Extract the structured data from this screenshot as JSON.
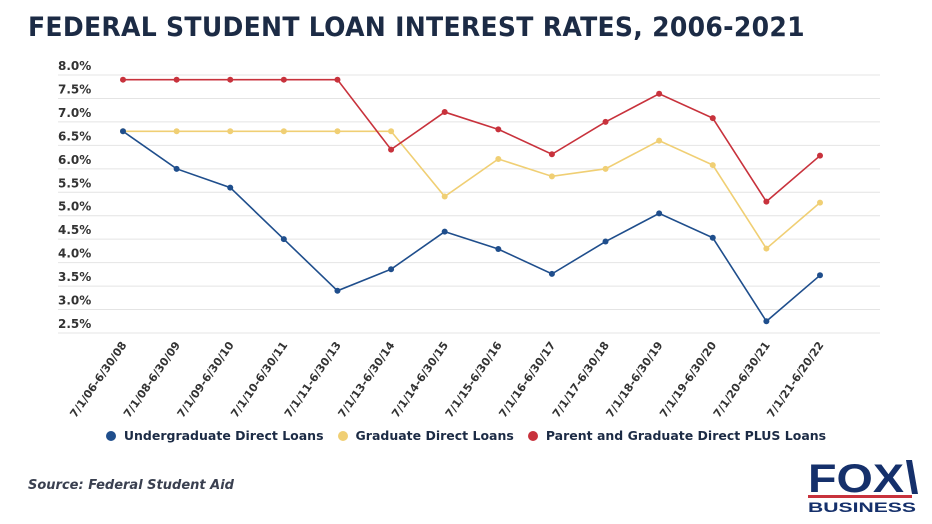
{
  "chart_data": {
    "type": "line",
    "title": "FEDERAL STUDENT LOAN INTEREST RATES, 2006-2021",
    "categories": [
      "7/1/06-6/30/08",
      "7/1/08-6/30/09",
      "7/1/09-6/30/10",
      "7/1/10-6/30/11",
      "7/1/11-6/30/13",
      "7/1/13-6/30/14",
      "7/1/14-6/30/15",
      "7/1/15-6/30/16",
      "7/1/16-6/30/17",
      "7/1/17-6/30/18",
      "7/1/18-6/30/19",
      "7/1/19-6/30/20",
      "7/1/20-6/30/21",
      "7/1/21-6/20/22"
    ],
    "yticks": [
      "8.0%",
      "7.5%",
      "7.0%",
      "6.5%",
      "6.0%",
      "5.5%",
      "5.0%",
      "4.5%",
      "4.0%",
      "3.5%",
      "3.0%",
      "2.5%"
    ],
    "ylim": [
      2.5,
      8.0
    ],
    "grid": true,
    "legend_position": "bottom",
    "series": [
      {
        "name": "Undergraduate Direct Loans",
        "color": "#1f4e8c",
        "values": [
          6.8,
          6.0,
          5.6,
          4.5,
          3.4,
          3.86,
          4.66,
          4.29,
          3.76,
          4.45,
          5.05,
          4.53,
          2.75,
          3.73
        ]
      },
      {
        "name": "Graduate Direct Loans",
        "color": "#f0cf74",
        "values": [
          6.8,
          6.8,
          6.8,
          6.8,
          6.8,
          6.8,
          5.41,
          6.21,
          5.84,
          6.0,
          6.6,
          6.08,
          4.3,
          5.28
        ]
      },
      {
        "name": "Parent and Graduate Direct PLUS Loans",
        "color": "#c8323c",
        "values": [
          7.9,
          7.9,
          7.9,
          7.9,
          7.9,
          6.41,
          7.21,
          6.84,
          6.31,
          7.0,
          7.6,
          7.08,
          5.3,
          6.28
        ]
      }
    ]
  },
  "source": "Source: Federal Student Aid",
  "logo": {
    "top": "FOX",
    "bottom": "BUSINESS"
  }
}
